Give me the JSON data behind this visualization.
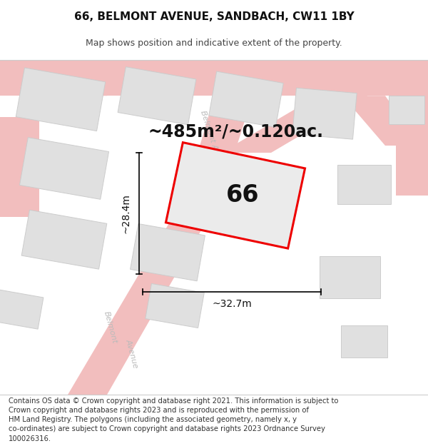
{
  "title": "66, BELMONT AVENUE, SANDBACH, CW11 1BY",
  "subtitle": "Map shows position and indicative extent of the property.",
  "area_label": "~485m²/~0.120ac.",
  "property_number": "66",
  "width_label": "~32.7m",
  "height_label": "~28.4m",
  "footer": "Contains OS data © Crown copyright and database right 2021. This information is subject to Crown copyright and database rights 2023 and is reproduced with the permission of HM Land Registry. The polygons (including the associated geometry, namely x, y co-ordinates) are subject to Crown copyright and database rights 2023 Ordnance Survey 100026316.",
  "bg_color": "#f7f7f5",
  "road_color": "#f2bebe",
  "road_edge": "#f2bebe",
  "building_fill": "#e0e0e0",
  "building_edge": "#cccccc",
  "property_fill": "#e8e8e8",
  "property_edge": "#ee0000",
  "property_edge_width": 2.2,
  "title_fontsize": 11,
  "subtitle_fontsize": 9,
  "area_fontsize": 17,
  "number_fontsize": 24,
  "dim_fontsize": 10,
  "footer_fontsize": 7.2,
  "street_label_color": "#bbbbbb",
  "street_label_size": 8
}
